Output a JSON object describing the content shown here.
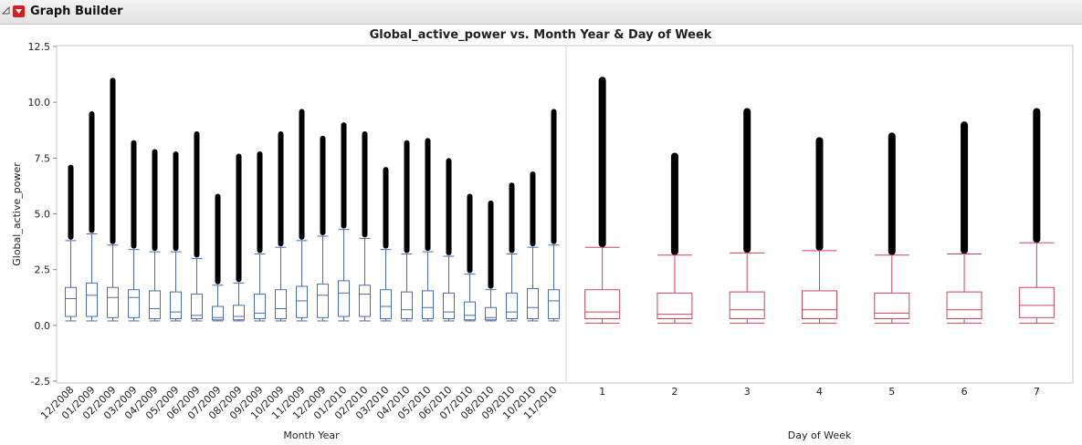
{
  "header": {
    "title": "Graph Builder"
  },
  "chart_data": {
    "type": "box",
    "title": "Global_active_power vs. Month Year & Day of Week",
    "y_label": "Global_active_power",
    "ylim": [
      -2.5,
      12.5
    ],
    "yticks": [
      -2.5,
      {
        "value": 0,
        "label": "0.0"
      },
      2.5,
      {
        "value": 5,
        "label": "5.0"
      },
      7.5,
      {
        "value": 10,
        "label": "10.0"
      },
      12.5
    ],
    "panels": [
      {
        "x_label": "Month Year",
        "color": "#4a6bb5",
        "categories": [
          "12/2008",
          "01/2009",
          "02/2009",
          "03/2009",
          "04/2009",
          "05/2009",
          "06/2009",
          "07/2009",
          "08/2009",
          "09/2009",
          "10/2009",
          "11/2009",
          "12/2009",
          "01/2010",
          "02/2010",
          "03/2010",
          "04/2010",
          "05/2010",
          "06/2010",
          "07/2010",
          "08/2010",
          "09/2010",
          "10/2010",
          "11/2010"
        ],
        "low": [
          0.2,
          0.2,
          0.2,
          0.2,
          0.2,
          0.2,
          0.2,
          0.2,
          0.2,
          0.2,
          0.2,
          0.2,
          0.2,
          0.2,
          0.2,
          0.2,
          0.2,
          0.2,
          0.2,
          0.2,
          0.2,
          0.2,
          0.2,
          0.2
        ],
        "q1": [
          0.4,
          0.4,
          0.35,
          0.35,
          0.3,
          0.3,
          0.3,
          0.25,
          0.25,
          0.3,
          0.3,
          0.35,
          0.35,
          0.4,
          0.4,
          0.3,
          0.3,
          0.3,
          0.3,
          0.25,
          0.25,
          0.3,
          0.3,
          0.3
        ],
        "median": [
          1.2,
          1.35,
          1.25,
          1.25,
          0.75,
          0.6,
          0.45,
          0.35,
          0.4,
          0.55,
          0.75,
          1.1,
          1.35,
          1.45,
          1.4,
          0.85,
          0.7,
          0.8,
          0.6,
          0.45,
          0.35,
          0.6,
          0.8,
          1.1
        ],
        "q3": [
          1.7,
          1.9,
          1.7,
          1.6,
          1.55,
          1.5,
          1.4,
          0.85,
          0.9,
          1.4,
          1.6,
          1.75,
          1.85,
          2.0,
          1.8,
          1.6,
          1.5,
          1.55,
          1.45,
          1.05,
          0.8,
          1.45,
          1.65,
          1.6
        ],
        "high": [
          3.8,
          4.1,
          3.6,
          3.4,
          3.3,
          3.3,
          3.0,
          1.8,
          1.9,
          3.2,
          3.5,
          3.8,
          4.0,
          4.3,
          3.9,
          3.4,
          3.2,
          3.3,
          3.1,
          2.3,
          1.6,
          3.2,
          3.5,
          3.6
        ],
        "max": [
          7.2,
          9.6,
          11.1,
          8.3,
          7.9,
          7.8,
          8.7,
          5.9,
          7.7,
          7.8,
          8.7,
          9.7,
          8.5,
          9.1,
          8.7,
          7.1,
          8.3,
          8.4,
          7.5,
          5.9,
          5.6,
          6.4,
          6.9,
          9.7
        ]
      },
      {
        "x_label": "Day of Week",
        "color": "#d0435a",
        "categories": [
          "1",
          "2",
          "3",
          "4",
          "5",
          "6",
          "7"
        ],
        "low": [
          0.1,
          0.1,
          0.1,
          0.1,
          0.1,
          0.1,
          0.1
        ],
        "q1": [
          0.3,
          0.3,
          0.3,
          0.3,
          0.3,
          0.3,
          0.35
        ],
        "median": [
          0.6,
          0.5,
          0.7,
          0.7,
          0.55,
          0.7,
          0.9
        ],
        "q3": [
          1.6,
          1.45,
          1.5,
          1.55,
          1.45,
          1.5,
          1.7
        ],
        "high": [
          3.5,
          3.15,
          3.25,
          3.35,
          3.15,
          3.2,
          3.7
        ],
        "max": [
          11.1,
          7.7,
          9.7,
          8.4,
          8.6,
          9.1,
          9.7
        ]
      }
    ]
  }
}
